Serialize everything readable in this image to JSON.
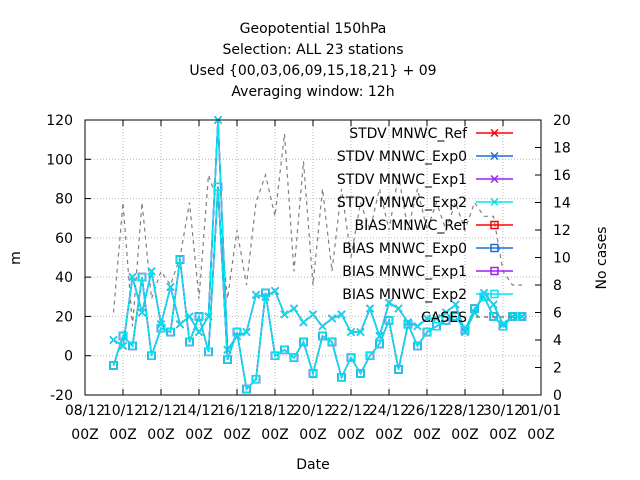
{
  "chart_data": {
    "type": "line",
    "title_lines": [
      "Geopotential 150hPa",
      "Selection: ALL      23 stations",
      "Used {00,03,06,09,15,18,21} + 09",
      "Averaging window: 12h"
    ],
    "xlabel": "Date",
    "ylabel": "m",
    "y2label": "No cases",
    "ylim": [
      -20,
      120
    ],
    "y2lim": [
      0,
      20
    ],
    "xlim": [
      0,
      24
    ],
    "yticks": [
      -20,
      0,
      20,
      40,
      60,
      80,
      100,
      120
    ],
    "y2ticks": [
      0,
      2,
      4,
      6,
      8,
      10,
      12,
      14,
      16,
      18,
      20
    ],
    "xticks": [
      {
        "x": 0,
        "date": "08/12",
        "hour": "00Z"
      },
      {
        "x": 2,
        "date": "10/12",
        "hour": "00Z"
      },
      {
        "x": 4,
        "date": "12/12",
        "hour": "00Z"
      },
      {
        "x": 6,
        "date": "14/12",
        "hour": "00Z"
      },
      {
        "x": 8,
        "date": "16/12",
        "hour": "00Z"
      },
      {
        "x": 10,
        "date": "18/12",
        "hour": "00Z"
      },
      {
        "x": 12,
        "date": "20/12",
        "hour": "00Z"
      },
      {
        "x": 14,
        "date": "22/12",
        "hour": "00Z"
      },
      {
        "x": 16,
        "date": "24/12",
        "hour": "00Z"
      },
      {
        "x": 18,
        "date": "26/12",
        "hour": "00Z"
      },
      {
        "x": 20,
        "date": "28/12",
        "hour": "00Z"
      },
      {
        "x": 22,
        "date": "30/12",
        "hour": "00Z"
      },
      {
        "x": 24,
        "date": "01/01",
        "hour": "00Z"
      }
    ],
    "x_days": [
      1.5,
      2.0,
      2.5,
      3.0,
      3.5,
      4.0,
      4.5,
      5.0,
      5.5,
      6.0,
      6.5,
      7.0,
      7.5,
      8.0,
      8.5,
      9.0,
      9.5,
      10.0,
      10.5,
      11.0,
      11.5,
      12.0,
      12.5,
      13.0,
      13.5,
      14.0,
      14.5,
      15.0,
      15.5,
      16.0,
      16.5,
      17.0,
      17.5,
      18.0,
      18.5,
      19.0,
      19.5,
      20.0,
      20.5,
      21.0,
      21.5,
      22.0,
      22.5,
      23.0
    ],
    "x_note": "x = days since 08/12 00Z",
    "series": [
      {
        "name": "STDV MNWC_Ref",
        "color": "#ff0000",
        "marker": "x",
        "style": "line",
        "values": [
          8,
          5,
          40,
          22,
          43,
          16,
          35,
          16,
          20,
          12,
          20,
          120,
          3,
          10,
          12,
          31,
          30,
          33,
          21,
          24,
          17,
          21,
          15,
          19,
          21,
          12,
          12,
          24,
          10,
          27,
          24,
          17,
          15,
          19,
          19,
          22,
          26,
          12,
          22,
          32,
          26,
          16,
          20,
          20
        ]
      },
      {
        "name": "STDV MNWC_Exp0",
        "color": "#1e6ed7",
        "marker": "x",
        "style": "line",
        "values": [
          8,
          5,
          40,
          22,
          43,
          16,
          35,
          16,
          20,
          12,
          20,
          120,
          3,
          10,
          12,
          31,
          30,
          33,
          21,
          24,
          17,
          21,
          15,
          19,
          21,
          12,
          12,
          24,
          10,
          27,
          24,
          17,
          15,
          19,
          19,
          22,
          26,
          12,
          22,
          32,
          26,
          16,
          20,
          20
        ]
      },
      {
        "name": "STDV MNWC_Exp1",
        "color": "#a020f0",
        "marker": "x",
        "style": "line",
        "values": [
          8,
          5,
          40,
          22,
          43,
          16,
          35,
          16,
          20,
          12,
          20,
          120,
          3,
          10,
          12,
          31,
          30,
          33,
          21,
          24,
          17,
          21,
          15,
          19,
          21,
          12,
          12,
          24,
          10,
          27,
          24,
          17,
          15,
          19,
          19,
          22,
          26,
          12,
          22,
          32,
          26,
          16,
          20,
          20
        ]
      },
      {
        "name": "STDV MNWC_Exp2",
        "color": "#00e5ee",
        "marker": "x",
        "style": "line",
        "values": [
          8,
          5,
          40,
          22,
          43,
          16,
          35,
          16,
          20,
          12,
          20,
          120,
          3,
          10,
          12,
          31,
          30,
          33,
          21,
          24,
          17,
          21,
          15,
          19,
          21,
          12,
          12,
          24,
          10,
          27,
          24,
          17,
          15,
          19,
          19,
          22,
          26,
          12,
          22,
          32,
          26,
          16,
          20,
          20
        ]
      },
      {
        "name": "BIAS MNWC_Ref",
        "color": "#ff0000",
        "marker": "square",
        "style": "line",
        "values": [
          -5,
          10,
          5,
          40,
          0,
          14,
          12,
          49,
          7,
          20,
          2,
          86,
          -2,
          12,
          -17,
          -12,
          32,
          0,
          3,
          -1,
          7,
          -9,
          10,
          7,
          -11,
          -1,
          -9,
          0,
          6,
          18,
          -7,
          16,
          5,
          12,
          15,
          18,
          20,
          13,
          24,
          30,
          20,
          15,
          20,
          20
        ]
      },
      {
        "name": "BIAS MNWC_Exp0",
        "color": "#1e6ed7",
        "marker": "square",
        "style": "line",
        "values": [
          -5,
          10,
          5,
          40,
          0,
          14,
          12,
          49,
          7,
          20,
          2,
          86,
          -2,
          12,
          -17,
          -12,
          32,
          0,
          3,
          -1,
          7,
          -9,
          10,
          7,
          -11,
          -1,
          -9,
          0,
          6,
          18,
          -7,
          16,
          5,
          12,
          15,
          18,
          20,
          13,
          24,
          30,
          20,
          15,
          20,
          20
        ]
      },
      {
        "name": "BIAS MNWC_Exp1",
        "color": "#a020f0",
        "marker": "square",
        "style": "line",
        "values": [
          -5,
          10,
          5,
          40,
          0,
          14,
          12,
          49,
          7,
          20,
          2,
          86,
          -2,
          12,
          -17,
          -12,
          32,
          0,
          3,
          -1,
          7,
          -9,
          10,
          7,
          -11,
          -1,
          -9,
          0,
          6,
          18,
          -7,
          16,
          5,
          12,
          15,
          18,
          20,
          13,
          24,
          30,
          20,
          15,
          20,
          20
        ]
      },
      {
        "name": "BIAS MNWC_Exp2",
        "color": "#00e5ee",
        "marker": "square",
        "style": "line",
        "values": [
          -5,
          10,
          5,
          40,
          0,
          14,
          12,
          49,
          7,
          20,
          2,
          86,
          -2,
          12,
          -17,
          -12,
          32,
          0,
          3,
          -1,
          7,
          -9,
          10,
          7,
          -11,
          -1,
          -9,
          0,
          6,
          18,
          -7,
          16,
          5,
          12,
          15,
          18,
          20,
          13,
          24,
          30,
          20,
          15,
          20,
          20
        ]
      },
      {
        "name": "CASES",
        "color": "#808080",
        "marker": "none",
        "style": "dashed",
        "axis": "y2",
        "values": [
          6,
          14,
          5,
          14,
          7,
          9,
          8,
          10,
          14,
          7,
          16,
          14,
          7,
          12,
          8,
          14,
          16,
          13,
          19,
          9,
          17,
          8,
          15,
          9,
          15,
          10,
          14,
          12,
          15,
          12,
          16,
          12,
          15,
          12,
          14,
          12,
          14,
          12,
          14,
          13,
          13,
          9,
          8,
          8
        ]
      }
    ]
  }
}
